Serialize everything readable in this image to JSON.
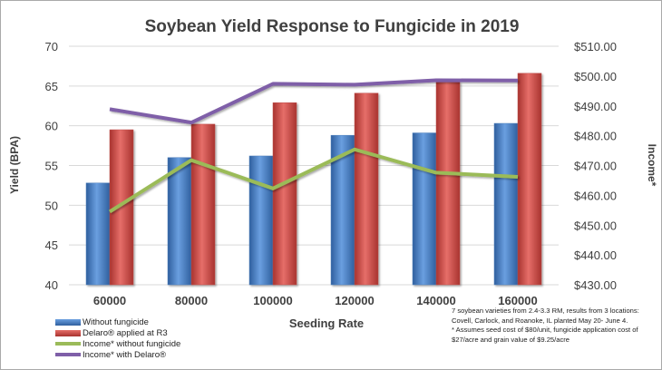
{
  "chart_data": {
    "type": "bar",
    "title": "Soybean Yield Response to Fungicide in 2019",
    "xlabel": "Seeding Rate",
    "ylabel": "Yield (BPA)",
    "y2label": "Income*",
    "categories": [
      "60000",
      "80000",
      "100000",
      "120000",
      "140000",
      "160000"
    ],
    "ylim": [
      40,
      70
    ],
    "yticks": [
      "40",
      "45",
      "50",
      "55",
      "60",
      "65",
      "70"
    ],
    "y2lim": [
      430,
      510
    ],
    "y2ticks": [
      "$430.00",
      "$440.00",
      "$450.00",
      "$460.00",
      "$470.00",
      "$480.00",
      "$490.00",
      "$500.00",
      "$510.00"
    ],
    "grid": true,
    "legend_position": "bottom-left",
    "series": [
      {
        "name": "Without fungicide",
        "type": "bar",
        "axis": "left",
        "color": "#4f81bd",
        "values": [
          52.8,
          56.0,
          56.2,
          58.8,
          59.1,
          60.3
        ]
      },
      {
        "name": "Delaro® applied at R3",
        "type": "bar",
        "axis": "left",
        "color": "#c0504d",
        "values": [
          59.5,
          60.2,
          62.9,
          64.1,
          65.5,
          66.6
        ]
      },
      {
        "name": "Income* without fungicide",
        "type": "line",
        "axis": "right",
        "color": "#9bbb59",
        "values": [
          454.5,
          471.8,
          462.3,
          475.4,
          467.6,
          466.2
        ]
      },
      {
        "name": "Income* with Delaro®",
        "type": "line",
        "axis": "right",
        "color": "#7f5fa8",
        "values": [
          488.9,
          484.4,
          497.4,
          497.1,
          498.6,
          498.5
        ]
      }
    ],
    "annotation": "7 soybean varieties from 2.4-3.3 RM, results from 3 locations: Covell, Carlock, and Roanoke, IL planted May 20- June 4.\n* Assumes seed cost of $80/unit, fungicide application cost of $27/acre and grain value of $9.25/acre"
  }
}
